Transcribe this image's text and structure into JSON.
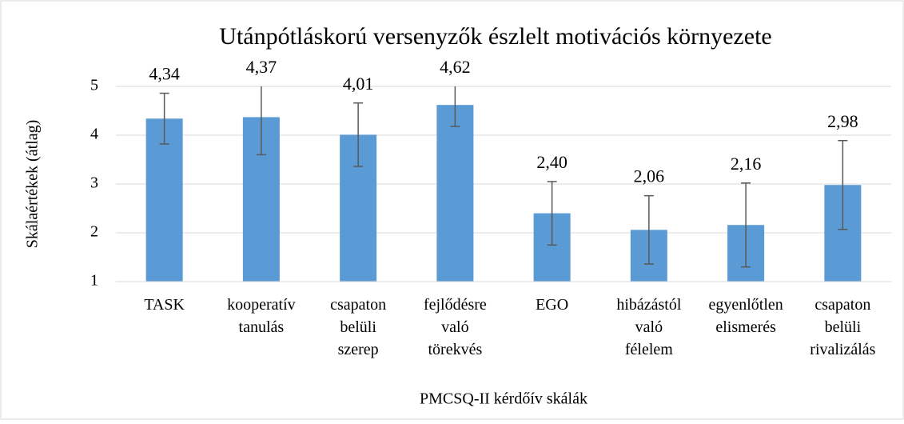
{
  "chart_data": {
    "type": "bar",
    "title": "Utánpótláskorú versenyzők észlelt motivációs környezete",
    "y_label": "Skálaértékek (átlag)",
    "x_label": "PMCSQ-II kérdőív skálák",
    "categories": [
      [
        "TASK"
      ],
      [
        "kooperatív",
        "tanulás"
      ],
      [
        "csapaton",
        "belüli",
        "szerep"
      ],
      [
        "fejlődésre",
        "való",
        "törekvés"
      ],
      [
        "EGO"
      ],
      [
        "hibázástól",
        "való",
        "félelem"
      ],
      [
        "egyenlőtlen",
        "elismerés"
      ],
      [
        "csapaton",
        "belüli",
        "rivalizálás"
      ]
    ],
    "values": [
      4.34,
      4.37,
      4.01,
      4.62,
      2.4,
      2.06,
      2.16,
      2.98
    ],
    "value_labels": [
      "4,34",
      "4,37",
      "4,01",
      "4,62",
      "2,40",
      "2,06",
      "2,16",
      "2,98"
    ],
    "errors": [
      0.52,
      0.77,
      0.65,
      0.44,
      0.65,
      0.7,
      0.86,
      0.91
    ],
    "color": "#5b9bd5",
    "ylim": [
      1,
      5
    ],
    "yticks": [
      1,
      2,
      3,
      4,
      5
    ],
    "grid": true
  }
}
